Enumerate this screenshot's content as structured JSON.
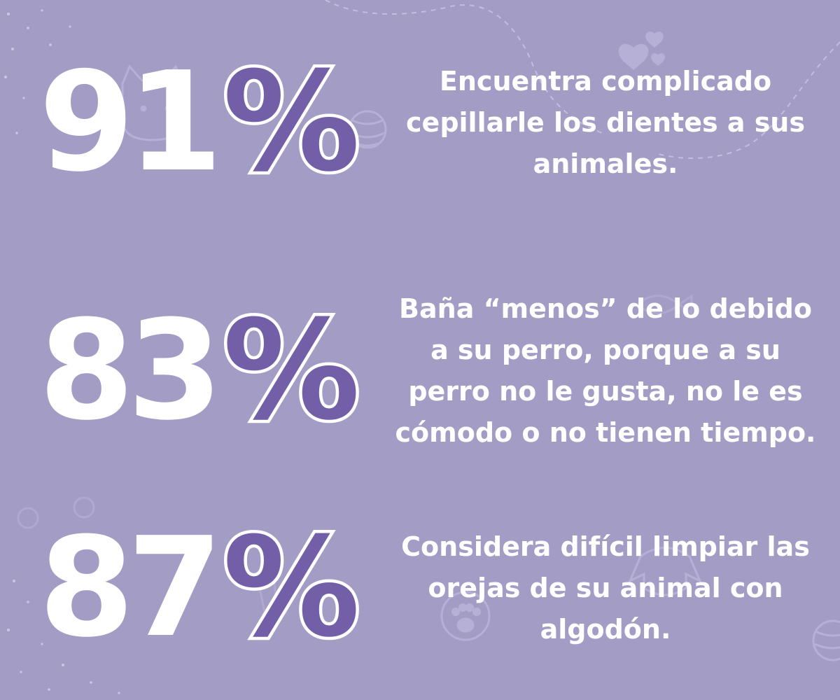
{
  "colors": {
    "background": "#a39dc6",
    "percent_accent": "#735ea8",
    "text": "#ffffff"
  },
  "background_icons": [
    "hearts-icon",
    "yarn-ball-icon",
    "cat-face-icon",
    "fish-icon",
    "paw-print-icon",
    "dog-face-icon",
    "bear-face-icon"
  ],
  "stats": [
    {
      "number": "91",
      "symbol": "%",
      "text": "Encuentra complicado cepillarle los dientes a sus animales."
    },
    {
      "number": "83",
      "symbol": "%",
      "text": "Baña “menos” de lo debido a su perro, porque a su perro no le gusta, no le es cómodo o no tienen tiempo."
    },
    {
      "number": "87",
      "symbol": "%",
      "text": "Considera difícil limpiar las orejas de su animal con algodón."
    }
  ]
}
